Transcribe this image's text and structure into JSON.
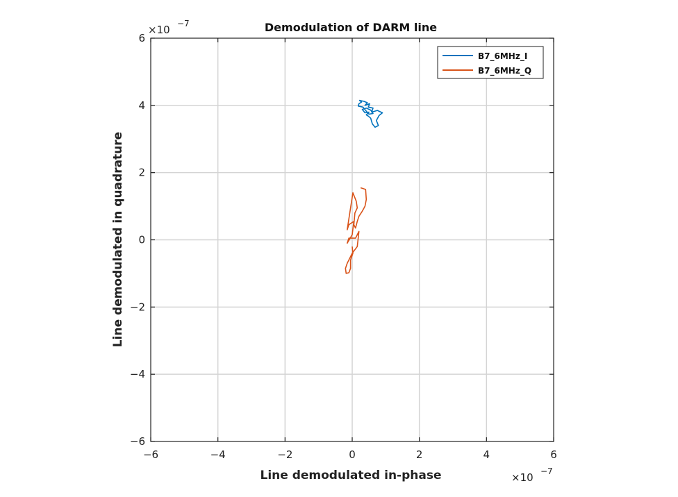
{
  "chart_data": {
    "type": "line",
    "title": "Demodulation of DARM line",
    "xlabel": "Line demodulated in-phase",
    "ylabel": "Line demodulated in quadrature",
    "x_multiplier": "×10",
    "x_exponent": "−7",
    "y_multiplier": "×10",
    "y_exponent": "−7",
    "xlim": [
      -6e-07,
      6e-07
    ],
    "ylim": [
      -6e-07,
      6e-07
    ],
    "xticks": [
      -6e-07,
      -4e-07,
      -2e-07,
      0,
      2e-07,
      4e-07,
      6e-07
    ],
    "xtick_labels": [
      "−6",
      "−4",
      "−2",
      "0",
      "2",
      "4",
      "6"
    ],
    "yticks": [
      -6e-07,
      -4e-07,
      -2e-07,
      0,
      2e-07,
      4e-07,
      6e-07
    ],
    "ytick_labels": [
      "−6",
      "−4",
      "−2",
      "0",
      "2",
      "4",
      "6"
    ],
    "grid": true,
    "legend_position": "top-right",
    "series": [
      {
        "name": "B7_6MHz_I",
        "color": "#0072bd",
        "x": [
          4e-08,
          3.2e-08,
          1.8e-08,
          2e-08,
          2.8e-08,
          2.2e-08,
          3.5e-08,
          4.5e-08,
          3.8e-08,
          5.2e-08,
          4.8e-08,
          6.2e-08,
          5.8e-08,
          7.5e-08,
          9e-08,
          8e-08,
          7.2e-08,
          7.8e-08,
          6.8e-08,
          6e-08,
          5.5e-08,
          4.8e-08,
          4.2e-08,
          5e-08,
          3.8e-08,
          3e-08,
          4.2e-08,
          5.5e-08,
          6.2e-08,
          5e-08,
          4e-08
        ],
        "y": [
          3.85e-07,
          3.95e-07,
          3.98e-07,
          4.05e-07,
          4.1e-07,
          4.15e-07,
          4.12e-07,
          4.08e-07,
          4e-07,
          4.05e-07,
          3.95e-07,
          3.92e-07,
          3.8e-07,
          3.85e-07,
          3.78e-07,
          3.7e-07,
          3.55e-07,
          3.4e-07,
          3.35e-07,
          3.45e-07,
          3.62e-07,
          3.68e-07,
          3.72e-07,
          3.8e-07,
          3.78e-07,
          3.88e-07,
          3.92e-07,
          3.86e-07,
          3.76e-07,
          3.74e-07,
          3.85e-07
        ]
      },
      {
        "name": "B7_6MHz_Q",
        "color": "#d95319",
        "x": [
          2.5e-08,
          4e-08,
          4.2e-08,
          3.8e-08,
          3e-08,
          2e-08,
          1.5e-08,
          1e-08,
          5e-09,
          8e-09,
          1.5e-08,
          1.2e-08,
          2e-09,
          -1.5e-08,
          -1e-08,
          5e-09,
          0.0,
          -1.5e-08,
          -1e-08,
          1e-08,
          2e-08,
          1.5e-08,
          0.0,
          -5e-09,
          -1.5e-08,
          -2e-08,
          -1.8e-08,
          -1e-08,
          -5e-09,
          -5e-09,
          2e-09,
          0.0
        ],
        "y": [
          1.55e-07,
          1.5e-07,
          1.2e-07,
          1e-07,
          8.5e-08,
          7e-08,
          5.5e-08,
          3.5e-08,
          4.5e-08,
          8e-08,
          9.5e-08,
          1.15e-07,
          1.4e-07,
          3e-08,
          4.5e-08,
          5.5e-08,
          1.5e-08,
          -1e-08,
          5e-09,
          5e-09,
          2.5e-08,
          -2e-08,
          -4e-08,
          -5e-08,
          -7e-08,
          -8.5e-08,
          -1e-07,
          -9.8e-08,
          -8.5e-08,
          -6e-08,
          -4e-08,
          -2e-08
        ]
      }
    ]
  }
}
